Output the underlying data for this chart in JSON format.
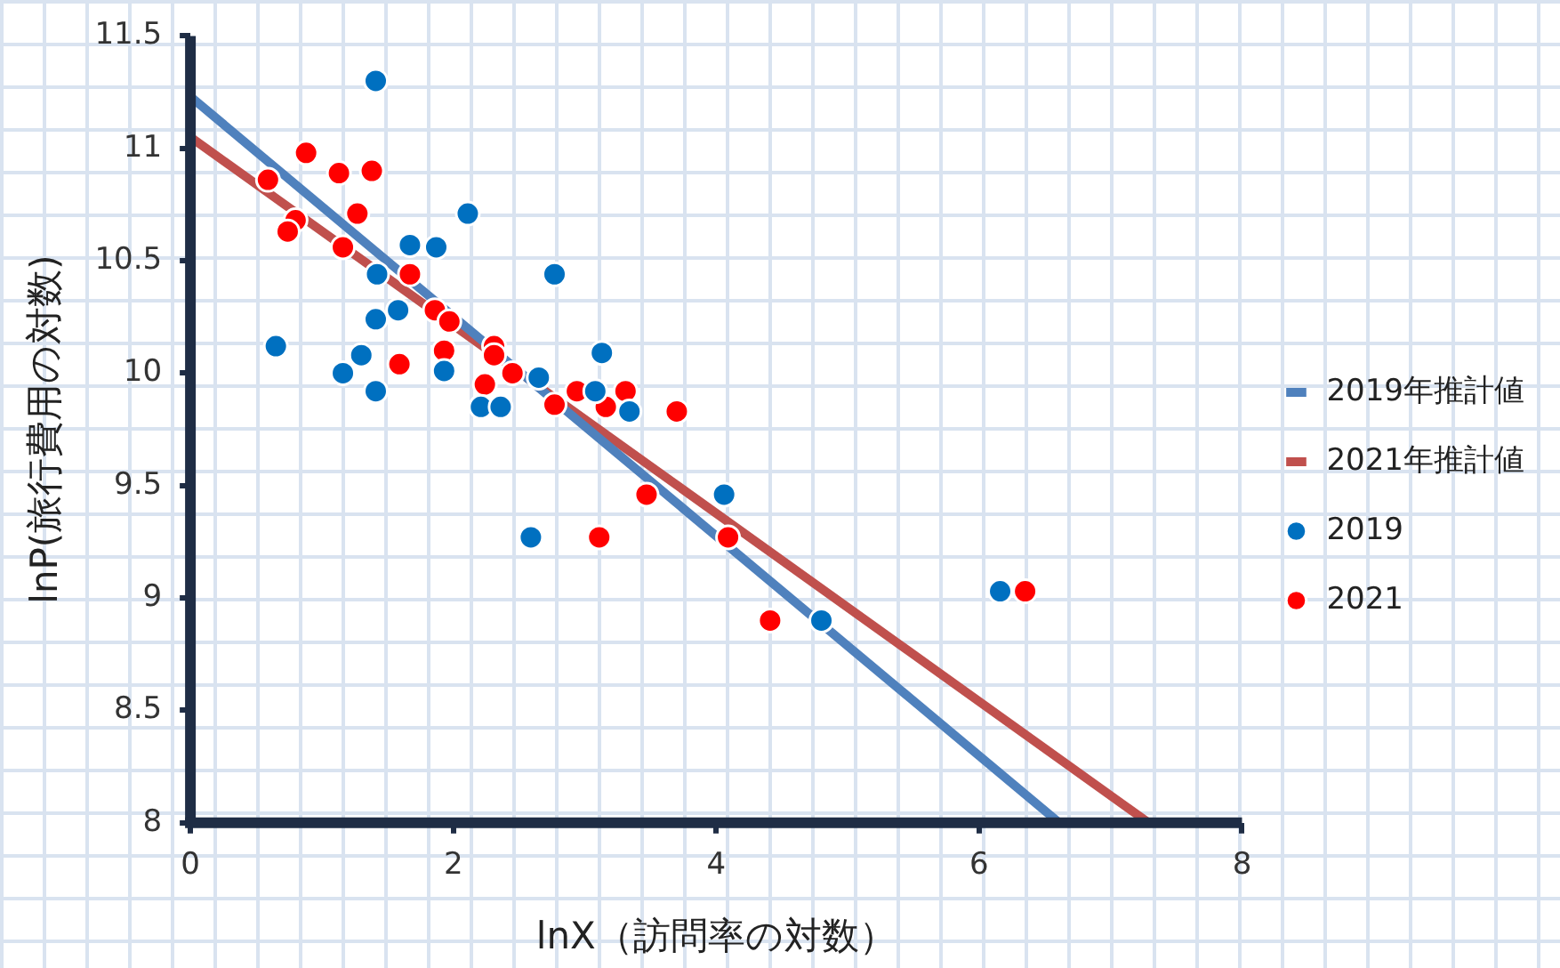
{
  "chart_data": {
    "type": "scatter",
    "xlabel": "lnX（訪問率の対数）",
    "ylabel": "lnP(旅行費用の対数)",
    "xlim": [
      0,
      8
    ],
    "xticks": [
      0,
      2,
      4,
      6,
      8
    ],
    "ylim": [
      8,
      11.5
    ],
    "yticks": [
      8,
      8.5,
      9,
      9.5,
      10,
      10.5,
      11,
      11.5
    ],
    "grid": false,
    "legend": "right",
    "series": [
      {
        "name": "2019年推計値",
        "type": "line",
        "color": "#4f81bd",
        "marker": "none",
        "x": [
          0,
          6.61
        ],
        "values": [
          11.23,
          8
        ]
      },
      {
        "name": "2021年推計値",
        "type": "line",
        "color": "#c0504d",
        "marker": "none",
        "x": [
          0,
          7.29
        ],
        "values": [
          11.05,
          8
        ]
      },
      {
        "name": "2019",
        "color": "#0070c0",
        "marker": "circle",
        "x": [
          1.41,
          0.65,
          1.16,
          1.3,
          1.41,
          1.41,
          1.42,
          1.58,
          1.67,
          1.87,
          2.11,
          1.93,
          2.21,
          2.36,
          2.65,
          3.08,
          3.13,
          3.34,
          2.77,
          2.59,
          4.06,
          4.8,
          6.16
        ],
        "values": [
          11.3,
          10.12,
          10.0,
          10.08,
          9.92,
          10.24,
          10.44,
          10.28,
          10.57,
          10.56,
          10.71,
          10.01,
          9.85,
          9.85,
          9.98,
          9.92,
          10.09,
          9.83,
          10.44,
          9.27,
          9.46,
          8.9,
          9.03
        ]
      },
      {
        "name": "2021",
        "color": "#ff0000",
        "marker": "circle",
        "x": [
          0.88,
          0.59,
          1.13,
          1.38,
          1.27,
          0.8,
          0.74,
          1.16,
          1.67,
          1.86,
          1.97,
          1.59,
          1.93,
          2.31,
          2.31,
          2.24,
          2.45,
          2.77,
          2.94,
          3.16,
          3.31,
          3.7,
          3.47,
          3.11,
          4.09,
          4.41,
          6.35
        ],
        "values": [
          10.98,
          10.86,
          10.89,
          10.9,
          10.71,
          10.68,
          10.63,
          10.56,
          10.44,
          10.28,
          10.23,
          10.04,
          10.1,
          10.12,
          10.08,
          9.95,
          10.0,
          9.86,
          9.92,
          9.85,
          9.92,
          9.83,
          9.46,
          9.27,
          9.27,
          8.9,
          9.03
        ]
      }
    ]
  }
}
